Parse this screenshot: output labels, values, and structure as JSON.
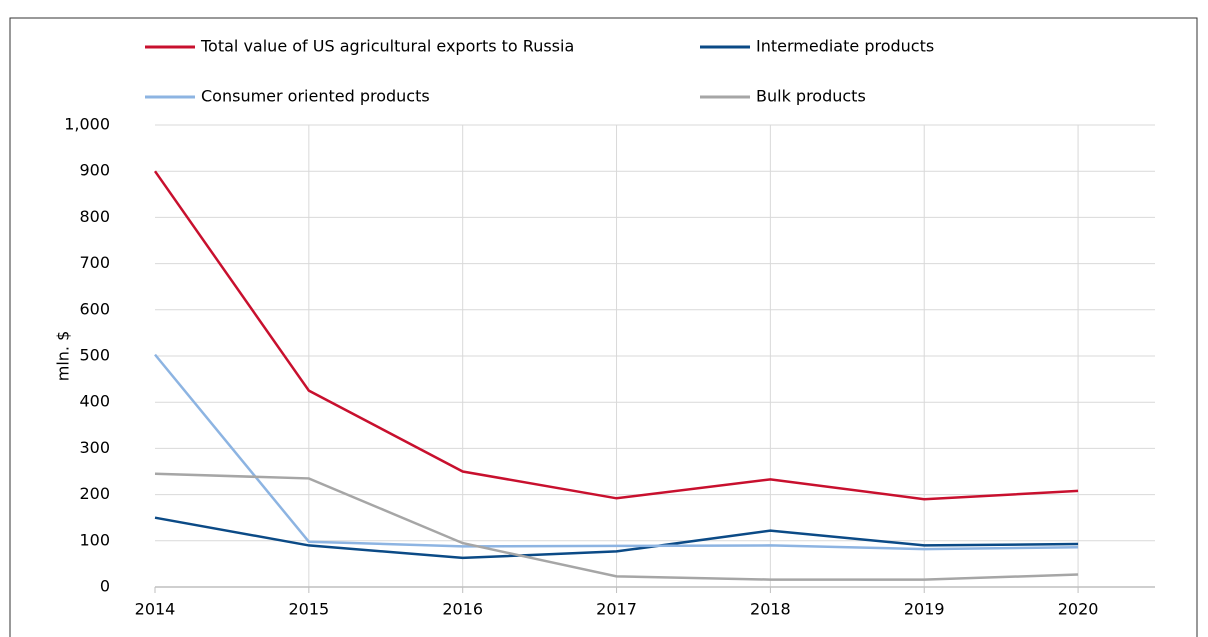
{
  "chart_data": {
    "type": "line",
    "y_label": "mln. $",
    "x": [
      2014,
      2015,
      2016,
      2017,
      2018,
      2019,
      2020
    ],
    "xlim": [
      2014,
      2020.5
    ],
    "xticks": [
      2014,
      2015,
      2016,
      2017,
      2018,
      2019,
      2020
    ],
    "ylim": [
      0,
      1000
    ],
    "yticks": [
      0,
      100,
      200,
      300,
      400,
      500,
      600,
      700,
      800,
      900,
      {
        "value": 1000,
        "label": "1,000"
      }
    ],
    "grid": true,
    "series": [
      {
        "name": "Total value of US agricultural exports to Russia",
        "color": "#c8102e",
        "values": [
          900,
          425,
          250,
          192,
          233,
          190,
          208
        ]
      },
      {
        "name": "Intermediate products",
        "color": "#0b4a86",
        "values": [
          150,
          90,
          63,
          77,
          122,
          90,
          93
        ]
      },
      {
        "name": "Consumer oriented products",
        "color": "#8db4e2",
        "values": [
          503,
          98,
          88,
          89,
          90,
          82,
          86
        ]
      },
      {
        "name": "Bulk products",
        "color": "#a6a6a6",
        "values": [
          245,
          235,
          95,
          23,
          16,
          16,
          27
        ]
      }
    ]
  }
}
